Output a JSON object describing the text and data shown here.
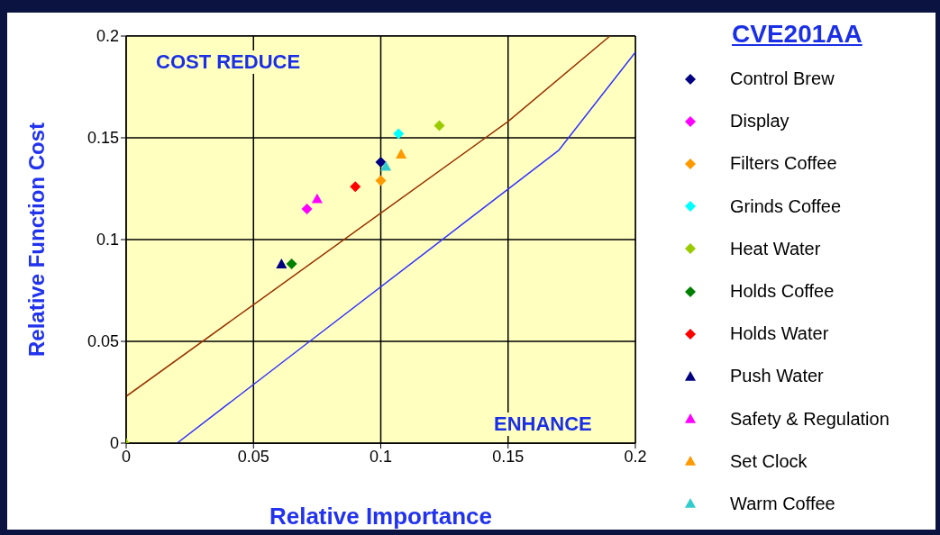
{
  "chart_data": {
    "type": "scatter",
    "xlabel": "Relative Importance",
    "ylabel": "Relative Function Cost",
    "legend_title": "CVE201AA",
    "annotations": [
      "COST REDUCE",
      "ENHANCE"
    ],
    "xlim": [
      0,
      0.2
    ],
    "ylim": [
      0,
      0.2
    ],
    "xticks": [
      0,
      0.05,
      0.1,
      0.15,
      0.2
    ],
    "yticks": [
      0,
      0.05,
      0.1,
      0.15,
      0.2
    ],
    "grid": true,
    "legend": "right",
    "series": [
      {
        "name": "Control Brew",
        "color": "#000080",
        "marker": "diamond",
        "x": [
          0.1
        ],
        "values": [
          0.138
        ]
      },
      {
        "name": "Display",
        "color": "#ff00ff",
        "marker": "diamond",
        "x": [
          0.071
        ],
        "values": [
          0.115
        ]
      },
      {
        "name": "Filters Coffee",
        "color": "#ff9900",
        "marker": "diamond",
        "x": [
          0.1
        ],
        "values": [
          0.129
        ]
      },
      {
        "name": "Grinds Coffee",
        "color": "#00ffff",
        "marker": "diamond",
        "x": [
          0.107
        ],
        "values": [
          0.152
        ]
      },
      {
        "name": "Heat Water",
        "color": "#99cc00",
        "marker": "diamond",
        "x": [
          0.123
        ],
        "values": [
          0.156
        ]
      },
      {
        "name": "Holds Coffee",
        "color": "#008000",
        "marker": "diamond",
        "x": [
          0.065
        ],
        "values": [
          0.088
        ]
      },
      {
        "name": "Holds Water",
        "color": "#ff0000",
        "marker": "diamond",
        "x": [
          0.09
        ],
        "values": [
          0.126
        ]
      },
      {
        "name": "Push Water",
        "color": "#000080",
        "marker": "triangle",
        "x": [
          0.061
        ],
        "values": [
          0.088
        ]
      },
      {
        "name": "Safety & Regulation",
        "color": "#ff00ff",
        "marker": "triangle",
        "x": [
          0.075
        ],
        "values": [
          0.12
        ]
      },
      {
        "name": "Set Clock",
        "color": "#ff9900",
        "marker": "triangle",
        "x": [
          0.108
        ],
        "values": [
          0.142
        ]
      },
      {
        "name": "Warm Coffee",
        "color": "#33cccc",
        "marker": "triangle",
        "x": [
          0.102
        ],
        "values": [
          0.136
        ]
      },
      {
        "color": "#99cc00",
        "marker": "triangle",
        "x": [
          0
        ],
        "values": [
          0
        ]
      },
      {
        "type": "line",
        "color": "#993300",
        "marker": "none",
        "x": [
          0,
          0.05,
          0.1,
          0.15,
          0.19
        ],
        "values": [
          0.023,
          0.068,
          0.113,
          0.158,
          0.2
        ]
      },
      {
        "type": "line",
        "color": "#3333ff",
        "marker": "none",
        "x": [
          0.02,
          0.07,
          0.12,
          0.17,
          0.2
        ],
        "values": [
          0,
          0.048,
          0.096,
          0.144,
          0.192
        ]
      }
    ]
  }
}
